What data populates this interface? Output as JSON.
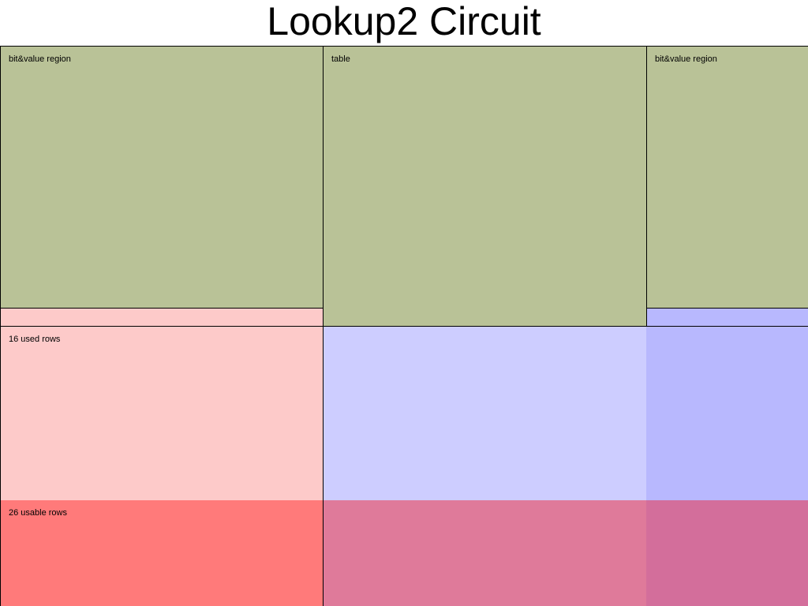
{
  "title": "Lookup2 Circuit",
  "regions": {
    "left_advice": {
      "label": "bit&value region",
      "color": "#b9c297"
    },
    "table": {
      "label": "table",
      "color": "#b9c297"
    },
    "right_advice": {
      "label": "bit&value region",
      "color": "#b9c297"
    },
    "used_rows": {
      "label": "16 used rows",
      "color": "#fdcac9"
    },
    "usable_rows": {
      "label": "26 usable rows",
      "color": "#ff7a7a"
    },
    "used_middle_color": "#cdcdff",
    "used_right_color": "#b8b8fe",
    "usable_middle_color": "#df7a9a",
    "usable_right_color": "#d36e9b"
  }
}
